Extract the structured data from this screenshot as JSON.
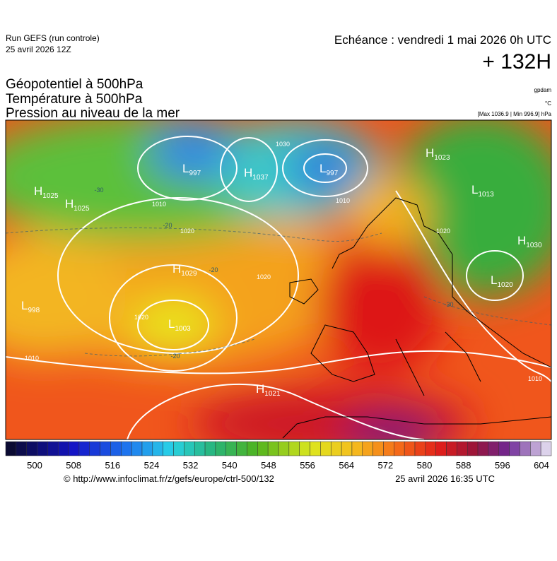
{
  "header": {
    "run": "Run GEFS (run controle)",
    "run_date": "25 avril 2026 12Z",
    "echeance": "Echéance : vendredi 1 mai 2026 0h UTC",
    "lead": "+ 132H"
  },
  "fields": [
    "Géopotentiel à 500hPa",
    "Température à 500hPa",
    "Pression au niveau de la mer"
  ],
  "units": {
    "geopotential": "gpdam",
    "temperature": "°C",
    "pressure": "[Max 1036.9 | Min 996.9] hPa"
  },
  "centers": [
    {
      "letter": "H",
      "value": "1025"
    },
    {
      "letter": "H",
      "value": "1025"
    },
    {
      "letter": "L",
      "value": "997"
    },
    {
      "letter": "H",
      "value": "1037"
    },
    {
      "letter": "L",
      "value": "997"
    },
    {
      "letter": "H",
      "value": "1023"
    },
    {
      "letter": "L",
      "value": "1013"
    },
    {
      "letter": "H",
      "value": "1029"
    },
    {
      "letter": "L",
      "value": "998"
    },
    {
      "letter": "L",
      "value": "1003"
    },
    {
      "letter": "H",
      "value": "1021"
    },
    {
      "letter": "H",
      "value": "1030"
    },
    {
      "letter": "L",
      "value": "1020"
    }
  ],
  "contour_labels": [
    "1010",
    "1010",
    "1010",
    "1020",
    "1020",
    "1020",
    "1020",
    "-20",
    "-20",
    "-20",
    "-30",
    "-30",
    "1010",
    "1030"
  ],
  "colorbar": {
    "ticks": [
      500,
      508,
      516,
      524,
      532,
      540,
      548,
      556,
      564,
      572,
      580,
      588,
      596,
      604
    ]
  },
  "footer": {
    "url": "© http://www.infoclimat.fr/z/gefs/europe/ctrl-500/132",
    "generated": "25 avril 2026 16:35 UTC"
  }
}
